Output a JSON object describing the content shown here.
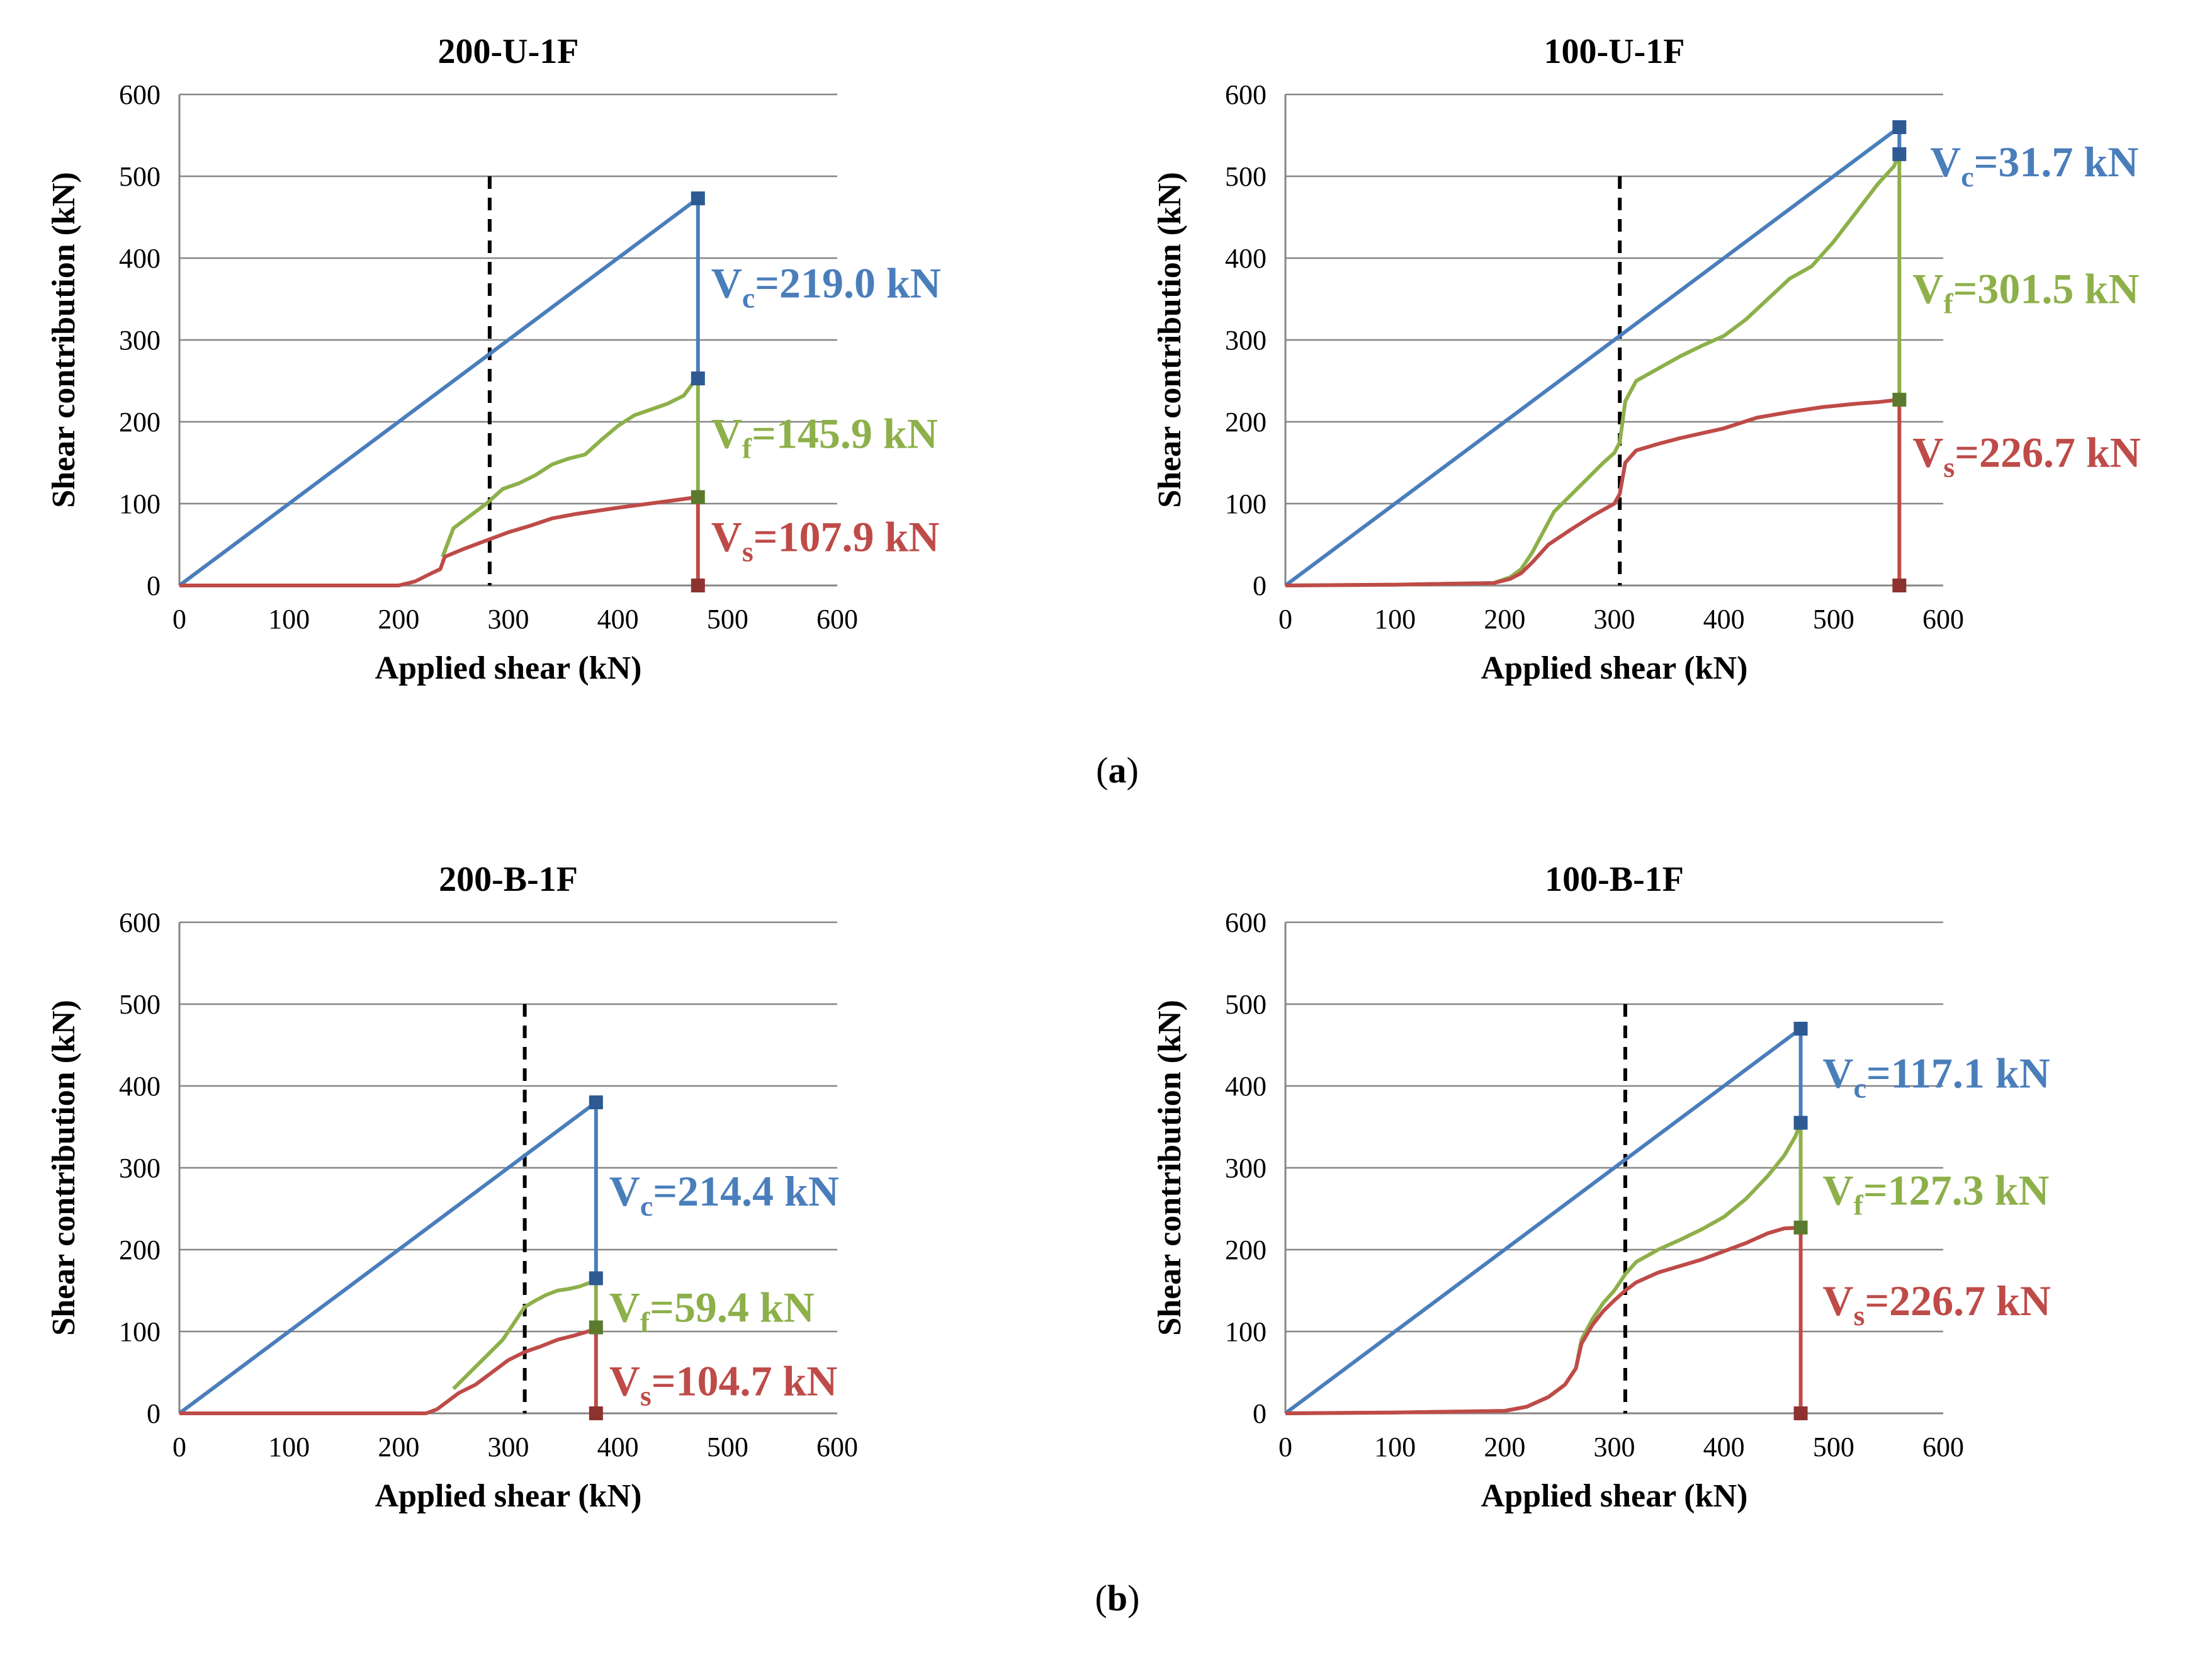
{
  "captions": [
    "(a)",
    "(b)"
  ],
  "colors": {
    "vc": "#4A7EBB",
    "vf": "#8DB04A",
    "vs": "#BE4B48",
    "marker_vc": "#2E5A94",
    "marker_vf": "#5B7A2E",
    "marker_vs": "#8E3230",
    "grid": "#868686",
    "dashed": "#000000"
  },
  "chart_data": [
    {
      "type": "line",
      "title": "200-U-1F",
      "xlabel": "Applied shear (kN)",
      "ylabel": "Shear contribution (kN)",
      "xlim": [
        0,
        600
      ],
      "ylim": [
        0,
        600
      ],
      "xticks": [
        "0",
        "100",
        "200",
        "300",
        "400",
        "500",
        "600"
      ],
      "yticks": [
        "0",
        "100",
        "200",
        "300",
        "400",
        "500",
        "600"
      ],
      "grid": true,
      "dashed_x": 283,
      "peak_x": 473,
      "series": [
        {
          "key": "vc",
          "points": [
            [
              0,
              0
            ],
            [
              473,
              473
            ]
          ]
        },
        {
          "key": "vf",
          "points": [
            [
              240,
              35
            ],
            [
              250,
              70
            ],
            [
              265,
              85
            ],
            [
              280,
              100
            ],
            [
              295,
              118
            ],
            [
              310,
              125
            ],
            [
              325,
              135
            ],
            [
              340,
              148
            ],
            [
              355,
              155
            ],
            [
              370,
              160
            ],
            [
              385,
              178
            ],
            [
              400,
              195
            ],
            [
              415,
              208
            ],
            [
              430,
              215
            ],
            [
              445,
              222
            ],
            [
              460,
              232
            ],
            [
              470,
              250
            ],
            [
              473,
              253
            ]
          ]
        },
        {
          "key": "vs",
          "points": [
            [
              0,
              0
            ],
            [
              200,
              0
            ],
            [
              215,
              5
            ],
            [
              230,
              15
            ],
            [
              238,
              20
            ],
            [
              242,
              35
            ],
            [
              260,
              45
            ],
            [
              280,
              55
            ],
            [
              300,
              65
            ],
            [
              320,
              73
            ],
            [
              340,
              82
            ],
            [
              360,
              87
            ],
            [
              400,
              95
            ],
            [
              440,
              102
            ],
            [
              473,
              108
            ]
          ]
        }
      ],
      "markers": {
        "vc": [
          473,
          473
        ],
        "vf": [
          473,
          253
        ],
        "vs": [
          473,
          108
        ],
        "base": [
          473,
          0
        ]
      },
      "labels": [
        {
          "key": "vc",
          "main": "V",
          "sub": "c",
          "value": "=219.0 kN",
          "x": 485,
          "y": 352
        },
        {
          "key": "vf",
          "main": "V",
          "sub": "f",
          "value": "=145.9 kN",
          "x": 485,
          "y": 168
        },
        {
          "key": "vs",
          "main": "V",
          "sub": "s",
          "value": "=107.9 kN",
          "x": 485,
          "y": 42
        }
      ]
    },
    {
      "type": "line",
      "title": "100-U-1F",
      "xlabel": "Applied shear (kN)",
      "ylabel": "Shear contribution (kN)",
      "xlim": [
        0,
        600
      ],
      "ylim": [
        0,
        600
      ],
      "xticks": [
        "0",
        "100",
        "200",
        "300",
        "400",
        "500",
        "600"
      ],
      "yticks": [
        "0",
        "100",
        "200",
        "300",
        "400",
        "500",
        "600"
      ],
      "grid": true,
      "dashed_x": 305,
      "peak_x": 560,
      "series": [
        {
          "key": "vc",
          "points": [
            [
              0,
              0
            ],
            [
              560,
              560
            ]
          ]
        },
        {
          "key": "vf",
          "points": [
            [
              0,
              0
            ],
            [
              100,
              1
            ],
            [
              190,
              3
            ],
            [
              205,
              10
            ],
            [
              215,
              20
            ],
            [
              225,
              40
            ],
            [
              235,
              65
            ],
            [
              245,
              90
            ],
            [
              260,
              110
            ],
            [
              275,
              130
            ],
            [
              290,
              150
            ],
            [
              300,
              162
            ],
            [
              305,
              175
            ],
            [
              310,
              225
            ],
            [
              320,
              250
            ],
            [
              340,
              265
            ],
            [
              360,
              280
            ],
            [
              380,
              293
            ],
            [
              400,
              305
            ],
            [
              420,
              325
            ],
            [
              440,
              350
            ],
            [
              460,
              375
            ],
            [
              480,
              390
            ],
            [
              500,
              420
            ],
            [
              520,
              455
            ],
            [
              540,
              490
            ],
            [
              555,
              512
            ],
            [
              560,
              527
            ]
          ]
        },
        {
          "key": "vs",
          "points": [
            [
              0,
              0
            ],
            [
              100,
              1
            ],
            [
              190,
              3
            ],
            [
              205,
              8
            ],
            [
              215,
              15
            ],
            [
              225,
              28
            ],
            [
              240,
              50
            ],
            [
              260,
              68
            ],
            [
              280,
              85
            ],
            [
              300,
              100
            ],
            [
              305,
              112
            ],
            [
              310,
              150
            ],
            [
              320,
              165
            ],
            [
              340,
              173
            ],
            [
              360,
              180
            ],
            [
              380,
              186
            ],
            [
              400,
              192
            ],
            [
              430,
              205
            ],
            [
              460,
              212
            ],
            [
              490,
              218
            ],
            [
              520,
              222
            ],
            [
              540,
              224
            ],
            [
              560,
              227
            ]
          ]
        }
      ],
      "markers": {
        "vc": [
          560,
          560
        ],
        "vf": [
          560,
          527
        ],
        "vs": [
          560,
          227
        ],
        "base": [
          560,
          0
        ]
      },
      "labels": [
        {
          "key": "vc",
          "main": "V",
          "sub": "c",
          "value": "=31.7 kN",
          "x": 588,
          "y": 500
        },
        {
          "key": "vf",
          "main": "V",
          "sub": "f",
          "value": "=301.5 kN",
          "x": 572,
          "y": 345
        },
        {
          "key": "vs",
          "main": "V",
          "sub": "s",
          "value": "=226.7 kN",
          "x": 572,
          "y": 145
        }
      ]
    },
    {
      "type": "line",
      "title": "200-B-1F",
      "xlabel": "Applied shear (kN)",
      "ylabel": "Shear contribution (kN)",
      "xlim": [
        0,
        600
      ],
      "ylim": [
        0,
        600
      ],
      "xticks": [
        "0",
        "100",
        "200",
        "300",
        "400",
        "500",
        "600"
      ],
      "yticks": [
        "0",
        "100",
        "200",
        "300",
        "400",
        "500",
        "600"
      ],
      "grid": true,
      "dashed_x": 315,
      "peak_x": 380,
      "series": [
        {
          "key": "vc",
          "points": [
            [
              0,
              0
            ],
            [
              380,
              380
            ]
          ]
        },
        {
          "key": "vf",
          "points": [
            [
              250,
              30
            ],
            [
              265,
              50
            ],
            [
              280,
              70
            ],
            [
              295,
              90
            ],
            [
              305,
              110
            ],
            [
              315,
              130
            ],
            [
              325,
              138
            ],
            [
              335,
              145
            ],
            [
              345,
              150
            ],
            [
              355,
              152
            ],
            [
              365,
              155
            ],
            [
              375,
              160
            ],
            [
              380,
              165
            ]
          ]
        },
        {
          "key": "vs",
          "points": [
            [
              0,
              0
            ],
            [
              225,
              0
            ],
            [
              235,
              5
            ],
            [
              245,
              15
            ],
            [
              255,
              25
            ],
            [
              270,
              35
            ],
            [
              285,
              50
            ],
            [
              300,
              65
            ],
            [
              315,
              75
            ],
            [
              330,
              82
            ],
            [
              345,
              90
            ],
            [
              360,
              95
            ],
            [
              380,
              103
            ]
          ]
        }
      ],
      "markers": {
        "vc": [
          380,
          380
        ],
        "vf": [
          380,
          165
        ],
        "vs": [
          380,
          105
        ],
        "base": [
          380,
          0
        ]
      },
      "labels": [
        {
          "key": "vc",
          "main": "V",
          "sub": "c",
          "value": "=214.4 kN",
          "x": 392,
          "y": 254
        },
        {
          "key": "vf",
          "main": "V",
          "sub": "f",
          "value": "=59.4 kN",
          "x": 392,
          "y": 112
        },
        {
          "key": "vs",
          "main": "V",
          "sub": "s",
          "value": "=104.7 kN",
          "x": 392,
          "y": 22
        }
      ]
    },
    {
      "type": "line",
      "title": "100-B-1F",
      "xlabel": "Applied shear (kN)",
      "ylabel": "Shear contribution (kN)",
      "xlim": [
        0,
        600
      ],
      "ylim": [
        0,
        600
      ],
      "xticks": [
        "0",
        "100",
        "200",
        "300",
        "400",
        "500",
        "600"
      ],
      "yticks": [
        "0",
        "100",
        "200",
        "300",
        "400",
        "500",
        "600"
      ],
      "grid": true,
      "dashed_x": 310,
      "peak_x": 470,
      "series": [
        {
          "key": "vc",
          "points": [
            [
              0,
              0
            ],
            [
              470,
              470
            ]
          ]
        },
        {
          "key": "vf",
          "points": [
            [
              0,
              0
            ],
            [
              100,
              1
            ],
            [
              200,
              3
            ],
            [
              220,
              8
            ],
            [
              240,
              20
            ],
            [
              255,
              35
            ],
            [
              265,
              55
            ],
            [
              270,
              90
            ],
            [
              280,
              115
            ],
            [
              290,
              135
            ],
            [
              300,
              150
            ],
            [
              310,
              170
            ],
            [
              320,
              185
            ],
            [
              340,
              200
            ],
            [
              360,
              212
            ],
            [
              380,
              225
            ],
            [
              400,
              240
            ],
            [
              420,
              262
            ],
            [
              440,
              290
            ],
            [
              455,
              315
            ],
            [
              465,
              338
            ],
            [
              470,
              355
            ]
          ]
        },
        {
          "key": "vs",
          "points": [
            [
              0,
              0
            ],
            [
              100,
              1
            ],
            [
              200,
              3
            ],
            [
              220,
              8
            ],
            [
              240,
              20
            ],
            [
              255,
              35
            ],
            [
              265,
              55
            ],
            [
              270,
              85
            ],
            [
              280,
              108
            ],
            [
              290,
              125
            ],
            [
              300,
              138
            ],
            [
              310,
              150
            ],
            [
              320,
              160
            ],
            [
              340,
              172
            ],
            [
              360,
              180
            ],
            [
              380,
              188
            ],
            [
              400,
              198
            ],
            [
              420,
              208
            ],
            [
              440,
              220
            ],
            [
              455,
              226
            ],
            [
              470,
              227
            ]
          ]
        }
      ],
      "markers": {
        "vc": [
          470,
          470
        ],
        "vf": [
          470,
          355
        ],
        "vs": [
          470,
          227
        ],
        "base": [
          470,
          0
        ]
      },
      "labels": [
        {
          "key": "vc",
          "main": "V",
          "sub": "c",
          "value": "=117.1 kN",
          "x": 490,
          "y": 398
        },
        {
          "key": "vf",
          "main": "V",
          "sub": "f",
          "value": "=127.3 kN",
          "x": 490,
          "y": 255
        },
        {
          "key": "vs",
          "main": "V",
          "sub": "s",
          "value": "=226.7 kN",
          "x": 490,
          "y": 120
        }
      ]
    }
  ]
}
